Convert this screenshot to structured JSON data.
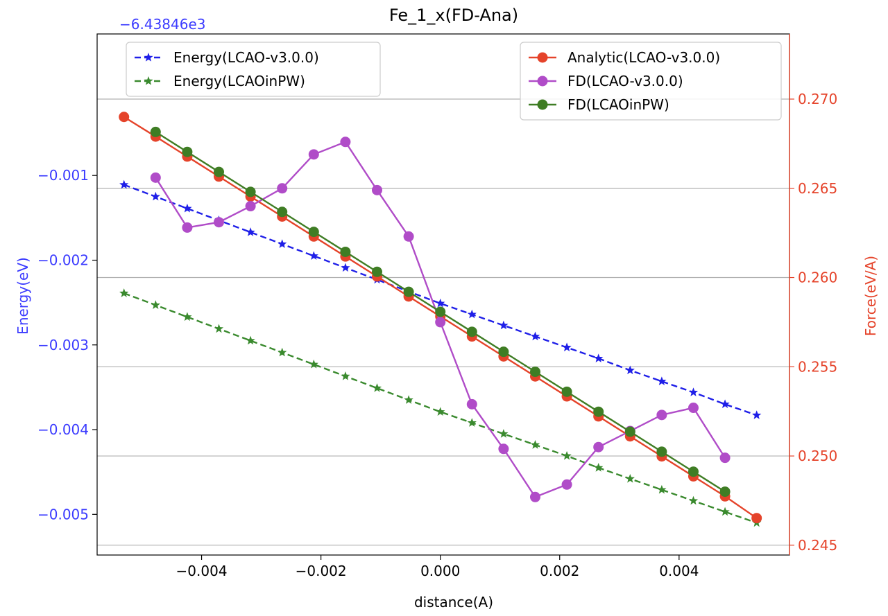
{
  "chart_data": {
    "type": "line",
    "title": "Fe_1_x(FD-Ana)",
    "xlabel": "distance(A)",
    "ylabel_left": "Energy(eV)",
    "ylabel_right": "Force(eV/A)",
    "left_offset_label": "−6.43846e3",
    "xlim": [
      -0.00575,
      0.00585
    ],
    "ylim_left": [
      -0.00548,
      0.00067
    ],
    "ylim_right": [
      0.24445,
      0.27365
    ],
    "x_ticks": [
      -0.004,
      -0.002,
      0.0,
      0.002,
      0.004
    ],
    "x_tick_labels": [
      "−0.004",
      "−0.002",
      "0.000",
      "0.002",
      "0.004"
    ],
    "y_left_ticks": [
      -0.001,
      -0.002,
      -0.003,
      -0.004,
      -0.005
    ],
    "y_left_tick_labels": [
      "−0.001",
      "−0.002",
      "−0.003",
      "−0.004",
      "−0.005"
    ],
    "y_right_ticks": [
      0.27,
      0.265,
      0.26,
      0.255,
      0.25,
      0.245
    ],
    "y_right_tick_labels": [
      "0.270",
      "0.265",
      "0.260",
      "0.255",
      "0.250",
      "0.245"
    ],
    "grid": "horizontal lines at right-axis ticks",
    "colors": {
      "left_axis": "#3b3bff",
      "right_axis": "#e5432a",
      "energy_v3": "#1f1fe8",
      "energy_pw": "#3a8a2e",
      "analytic": "#e5432a",
      "fd_v3": "#b04cc8",
      "fd_pw": "#3f7d24",
      "grid": "#b0b0b0"
    },
    "legend_left": {
      "placement": "upper-left",
      "entries": [
        "Energy(LCAO-v3.0.0)",
        "Energy(LCAOinPW)"
      ]
    },
    "legend_right": {
      "placement": "upper-right",
      "entries": [
        "Analytic(LCAO-v3.0.0)",
        "FD(LCAO-v3.0.0)",
        "FD(LCAOinPW)"
      ]
    },
    "series": [
      {
        "name": "Energy(LCAO-v3.0.0)",
        "axis": "left",
        "marker": "star",
        "linestyle": "dashed",
        "colorKey": "energy_v3",
        "x": [
          -0.0053,
          -0.00477,
          -0.00424,
          -0.00371,
          -0.00318,
          -0.00265,
          -0.00212,
          -0.00159,
          -0.00106,
          -0.00053,
          0,
          0.00053,
          0.00106,
          0.00159,
          0.00212,
          0.00265,
          0.00318,
          0.00371,
          0.00424,
          0.00477,
          0.0053
        ],
        "y": [
          -0.00111,
          -0.00125,
          -0.00139,
          -0.00153,
          -0.00167,
          -0.00181,
          -0.00195,
          -0.00209,
          -0.00223,
          -0.00237,
          -0.00251,
          -0.00264,
          -0.00277,
          -0.0029,
          -0.00303,
          -0.00316,
          -0.0033,
          -0.00343,
          -0.00356,
          -0.0037,
          -0.00383
        ]
      },
      {
        "name": "Energy(LCAOinPW)",
        "axis": "left",
        "marker": "star",
        "linestyle": "dashed",
        "colorKey": "energy_pw",
        "x": [
          -0.0053,
          -0.00477,
          -0.00424,
          -0.00371,
          -0.00318,
          -0.00265,
          -0.00212,
          -0.00159,
          -0.00106,
          -0.00053,
          0,
          0.00053,
          0.00106,
          0.00159,
          0.00212,
          0.00265,
          0.00318,
          0.00371,
          0.00424,
          0.00477,
          0.0053
        ],
        "y": [
          -0.00239,
          -0.00253,
          -0.00267,
          -0.00281,
          -0.00295,
          -0.00309,
          -0.00323,
          -0.00337,
          -0.00351,
          -0.00365,
          -0.00379,
          -0.00392,
          -0.00405,
          -0.00418,
          -0.00431,
          -0.00445,
          -0.00458,
          -0.00471,
          -0.00484,
          -0.00497,
          -0.0051
        ]
      },
      {
        "name": "Analytic(LCAO-v3.0.0)",
        "axis": "right",
        "marker": "circle",
        "linestyle": "solid",
        "colorKey": "analytic",
        "x": [
          -0.0053,
          -0.00477,
          -0.00424,
          -0.00371,
          -0.00318,
          -0.00265,
          -0.00212,
          -0.00159,
          -0.00106,
          -0.00053,
          0,
          0.00053,
          0.00106,
          0.00159,
          0.00212,
          0.00265,
          0.00318,
          0.00371,
          0.00424,
          0.00477,
          0.0053
        ],
        "y": [
          0.269,
          0.2679,
          0.26678,
          0.26566,
          0.26454,
          0.26342,
          0.2623,
          0.26118,
          0.26006,
          0.25894,
          0.25782,
          0.2567,
          0.25558,
          0.25446,
          0.25334,
          0.25222,
          0.2511,
          0.24998,
          0.24886,
          0.24774,
          0.24652
        ]
      },
      {
        "name": "FD(LCAO-v3.0.0)",
        "axis": "right",
        "marker": "circle",
        "linestyle": "solid",
        "colorKey": "fd_v3",
        "x": [
          -0.00477,
          -0.00424,
          -0.00371,
          -0.00318,
          -0.00265,
          -0.00212,
          -0.00159,
          -0.00106,
          -0.00053,
          0,
          0.00053,
          0.00106,
          0.00159,
          0.00212,
          0.00265,
          0.00318,
          0.00371,
          0.00424,
          0.00477
        ],
        "y": [
          0.2656,
          0.2628,
          0.2631,
          0.264,
          0.265,
          0.2669,
          0.2676,
          0.2649,
          0.2623,
          0.2575,
          0.2529,
          0.2504,
          0.2477,
          0.2484,
          0.2505,
          0.2514,
          0.2523,
          0.2527,
          0.2499
        ]
      },
      {
        "name": "FD(LCAOinPW)",
        "axis": "right",
        "marker": "circle",
        "linestyle": "solid",
        "colorKey": "fd_pw",
        "x": [
          -0.00477,
          -0.00424,
          -0.00371,
          -0.00318,
          -0.00265,
          -0.00212,
          -0.00159,
          -0.00106,
          -0.00053,
          0,
          0.00053,
          0.00106,
          0.00159,
          0.00212,
          0.00265,
          0.00318,
          0.00371,
          0.00424,
          0.00477
        ],
        "y": [
          0.26816,
          0.26704,
          0.26592,
          0.2648,
          0.26368,
          0.26256,
          0.26144,
          0.26032,
          0.2592,
          0.25808,
          0.25696,
          0.25584,
          0.25472,
          0.2536,
          0.25248,
          0.25136,
          0.25024,
          0.24912,
          0.248
        ]
      }
    ]
  }
}
